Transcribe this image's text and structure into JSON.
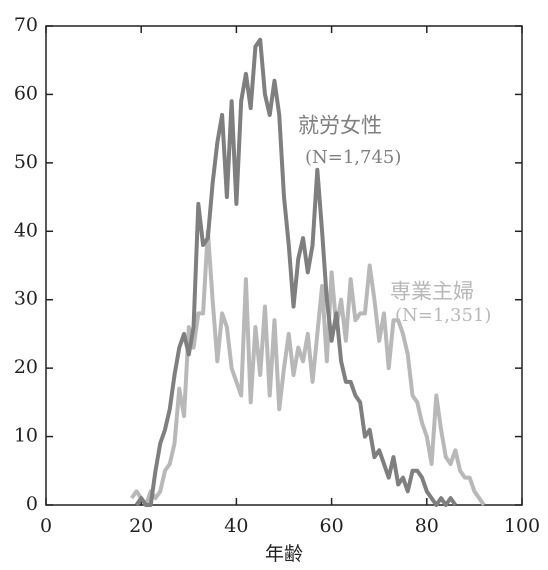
{
  "chart_data": {
    "type": "line",
    "x": [
      18,
      19,
      20,
      21,
      22,
      23,
      24,
      25,
      26,
      27,
      28,
      29,
      30,
      31,
      32,
      33,
      34,
      35,
      36,
      37,
      38,
      39,
      40,
      41,
      42,
      43,
      44,
      45,
      46,
      47,
      48,
      49,
      50,
      51,
      52,
      53,
      54,
      55,
      56,
      57,
      58,
      59,
      60,
      61,
      62,
      63,
      64,
      65,
      66,
      67,
      68,
      69,
      70,
      71,
      72,
      73,
      74,
      75,
      76,
      77,
      78,
      79,
      80,
      81,
      82,
      83,
      84,
      85,
      86,
      87,
      88,
      89,
      90,
      91,
      92
    ],
    "series": [
      {
        "name": "専業主婦",
        "n_label": "(N=1,351)",
        "color": "#b8b8b8",
        "values": [
          1,
          2,
          1,
          0,
          2,
          1,
          2,
          5,
          6,
          9,
          17,
          13,
          26,
          23,
          28,
          28,
          40,
          30,
          21,
          28,
          26,
          20,
          18,
          16,
          33,
          15,
          26,
          19,
          29,
          16,
          27,
          14,
          20,
          25,
          19,
          23,
          21,
          25,
          18,
          25,
          32,
          21,
          34,
          26,
          30,
          24,
          33,
          27,
          28,
          28,
          35,
          30,
          24,
          28,
          20,
          27,
          27,
          25,
          22,
          16,
          15,
          12,
          10,
          6,
          16,
          11,
          7,
          6,
          8,
          5,
          4,
          4,
          2,
          1,
          0
        ]
      },
      {
        "name": "就労女性",
        "n_label": "(N=1,745)",
        "color": "#7f7f7f",
        "values": [
          null,
          0,
          1,
          0,
          0,
          5,
          9,
          11,
          14,
          19,
          23,
          25,
          22,
          26,
          44,
          38,
          39,
          47,
          53,
          57,
          45,
          59,
          44,
          59,
          63,
          58,
          67,
          68,
          60,
          57,
          62,
          57,
          45,
          38,
          29,
          36,
          39,
          34,
          38,
          49,
          40,
          30,
          24,
          28,
          21,
          18,
          18,
          16,
          15,
          10,
          11,
          7,
          8,
          6,
          4,
          7,
          3,
          4,
          2,
          5,
          5,
          4,
          2,
          1,
          0,
          1,
          0,
          1,
          0,
          null,
          null,
          null,
          null,
          null,
          null
        ]
      }
    ],
    "x_label": "年齢",
    "xlim": [
      0,
      100
    ],
    "xticks": [
      0,
      20,
      40,
      60,
      80,
      100
    ],
    "ylim": [
      0,
      70
    ],
    "yticks": [
      0,
      10,
      20,
      30,
      40,
      50,
      60,
      70
    ]
  }
}
